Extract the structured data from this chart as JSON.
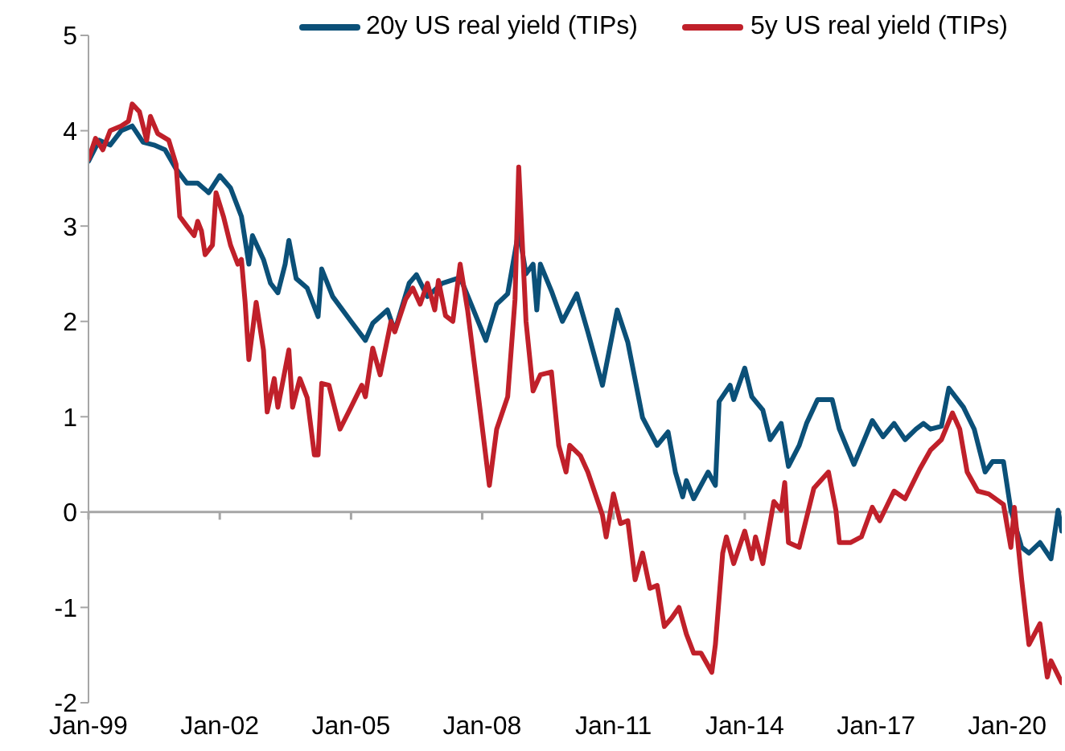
{
  "chart_data": {
    "type": "line",
    "xlim": [
      "1999-01",
      "2021-04"
    ],
    "ylim": [
      -2,
      5
    ],
    "yticks": [
      -2,
      -1,
      0,
      1,
      2,
      3,
      4,
      5
    ],
    "xticks": [
      {
        "value": "1999-01",
        "label": "Jan-99"
      },
      {
        "value": "2002-01",
        "label": "Jan-02"
      },
      {
        "value": "2005-01",
        "label": "Jan-05"
      },
      {
        "value": "2008-01",
        "label": "Jan-08"
      },
      {
        "value": "2011-01",
        "label": "Jan-11"
      },
      {
        "value": "2014-01",
        "label": "Jan-14"
      },
      {
        "value": "2017-01",
        "label": "Jan-17"
      },
      {
        "value": "2020-01",
        "label": "Jan-20"
      }
    ],
    "grid": false,
    "legend": "top",
    "marker": "none",
    "line_style": "solid",
    "ref_lines": [
      {
        "axis": "y",
        "value": 0,
        "color": "#a6a6a6"
      }
    ],
    "series": [
      {
        "name": "20y US real yield (TIPs)",
        "color": "#0b5078",
        "x": [
          "1999-01",
          "1999-04",
          "1999-07",
          "1999-10",
          "2000-01",
          "2000-04",
          "2000-07",
          "2000-10",
          "2001-01",
          "2001-04",
          "2001-07",
          "2001-10",
          "2002-01",
          "2002-04",
          "2002-07",
          "2002-09",
          "2002-10",
          "2003-01",
          "2003-03",
          "2003-05",
          "2003-07",
          "2003-08",
          "2003-10",
          "2004-01",
          "2004-04",
          "2004-05",
          "2004-08",
          "2005-01",
          "2005-05",
          "2005-07",
          "2005-11",
          "2006-01",
          "2006-05",
          "2006-07",
          "2006-10",
          "2007-02",
          "2007-07",
          "2007-10",
          "2008-02",
          "2008-05",
          "2008-08",
          "2008-11",
          "2009-01",
          "2009-03",
          "2009-04",
          "2009-05",
          "2009-08",
          "2009-11",
          "2010-03",
          "2010-06",
          "2010-10",
          "2011-02",
          "2011-05",
          "2011-09",
          "2012-01",
          "2012-04",
          "2012-06",
          "2012-08",
          "2012-09",
          "2012-11",
          "2013-03",
          "2013-05",
          "2013-06",
          "2013-09",
          "2013-10",
          "2014-01",
          "2014-03",
          "2014-06",
          "2014-08",
          "2014-11",
          "2015-01",
          "2015-04",
          "2015-06",
          "2015-09",
          "2016-01",
          "2016-03",
          "2016-07",
          "2016-12",
          "2017-03",
          "2017-06",
          "2017-09",
          "2017-12",
          "2018-02",
          "2018-04",
          "2018-07",
          "2018-09",
          "2019-01",
          "2019-04",
          "2019-07",
          "2019-09",
          "2019-12",
          "2020-02",
          "2020-05",
          "2020-07",
          "2020-10",
          "2021-01",
          "2021-03",
          "2021-04"
        ],
        "values": [
          3.68,
          3.9,
          3.85,
          4.0,
          4.05,
          3.88,
          3.85,
          3.8,
          3.6,
          3.45,
          3.45,
          3.35,
          3.53,
          3.4,
          3.1,
          2.6,
          2.9,
          2.65,
          2.4,
          2.3,
          2.6,
          2.85,
          2.45,
          2.35,
          2.05,
          2.55,
          2.26,
          2.0,
          1.8,
          1.98,
          2.12,
          1.9,
          2.4,
          2.49,
          2.26,
          2.4,
          2.46,
          2.18,
          1.8,
          2.18,
          2.29,
          2.95,
          2.5,
          2.6,
          2.12,
          2.6,
          2.32,
          2.0,
          2.29,
          1.89,
          1.33,
          2.12,
          1.78,
          0.99,
          0.7,
          0.84,
          0.42,
          0.16,
          0.33,
          0.14,
          0.42,
          0.28,
          1.16,
          1.33,
          1.18,
          1.51,
          1.21,
          1.07,
          0.76,
          0.93,
          0.48,
          0.7,
          0.93,
          1.18,
          1.18,
          0.87,
          0.5,
          0.96,
          0.79,
          0.93,
          0.76,
          0.87,
          0.93,
          0.87,
          0.9,
          1.3,
          1.1,
          0.87,
          0.42,
          0.53,
          0.53,
          0.02,
          -0.37,
          -0.43,
          -0.32,
          -0.49,
          0.02,
          -0.2
        ]
      },
      {
        "name": "5y US real yield (TIPs)",
        "color": "#c0202a",
        "x": [
          "1999-01",
          "1999-03",
          "1999-05",
          "1999-07",
          "1999-10",
          "1999-12",
          "2000-01",
          "2000-03",
          "2000-05",
          "2000-06",
          "2000-08",
          "2000-11",
          "2001-01",
          "2001-02",
          "2001-04",
          "2001-06",
          "2001-07",
          "2001-08",
          "2001-09",
          "2001-11",
          "2001-12",
          "2002-02",
          "2002-04",
          "2002-06",
          "2002-07",
          "2002-08",
          "2002-09",
          "2002-11",
          "2003-01",
          "2003-02",
          "2003-04",
          "2003-05",
          "2003-06",
          "2003-08",
          "2003-09",
          "2003-11",
          "2004-01",
          "2004-03",
          "2004-04",
          "2004-05",
          "2004-07",
          "2004-10",
          "2005-01",
          "2005-04",
          "2005-05",
          "2005-07",
          "2005-09",
          "2005-12",
          "2006-01",
          "2006-04",
          "2006-06",
          "2006-08",
          "2006-10",
          "2006-12",
          "2007-01",
          "2007-03",
          "2007-05",
          "2007-07",
          "2007-09",
          "2007-12",
          "2008-03",
          "2008-05",
          "2008-08",
          "2008-10",
          "2008-11",
          "2009-01",
          "2009-03",
          "2009-05",
          "2009-08",
          "2009-10",
          "2009-12",
          "2010-01",
          "2010-04",
          "2010-06",
          "2010-10",
          "2010-11",
          "2011-01",
          "2011-03",
          "2011-05",
          "2011-07",
          "2011-09",
          "2011-11",
          "2012-01",
          "2012-03",
          "2012-05",
          "2012-07",
          "2012-09",
          "2012-11",
          "2013-01",
          "2013-04",
          "2013-05",
          "2013-07",
          "2013-08",
          "2013-10",
          "2014-01",
          "2014-03",
          "2014-04",
          "2014-06",
          "2014-09",
          "2014-11",
          "2014-12",
          "2015-01",
          "2015-04",
          "2015-08",
          "2015-12",
          "2016-02",
          "2016-03",
          "2016-06",
          "2016-09",
          "2016-12",
          "2017-02",
          "2017-06",
          "2017-09",
          "2018-01",
          "2018-04",
          "2018-07",
          "2018-10",
          "2018-12",
          "2019-02",
          "2019-05",
          "2019-08",
          "2019-12",
          "2020-02",
          "2020-03",
          "2020-05",
          "2020-07",
          "2020-10",
          "2020-12",
          "2021-01",
          "2021-04"
        ],
        "values": [
          3.7,
          3.92,
          3.8,
          4.0,
          4.05,
          4.1,
          4.28,
          4.2,
          3.9,
          4.15,
          3.97,
          3.9,
          3.65,
          3.1,
          3.0,
          2.9,
          3.05,
          2.95,
          2.7,
          2.8,
          3.35,
          3.1,
          2.8,
          2.6,
          2.65,
          2.2,
          1.6,
          2.2,
          1.7,
          1.05,
          1.4,
          1.1,
          1.3,
          1.7,
          1.1,
          1.4,
          1.2,
          0.6,
          0.6,
          1.35,
          1.33,
          0.87,
          1.1,
          1.33,
          1.21,
          1.72,
          1.44,
          2.0,
          1.89,
          2.23,
          2.35,
          2.18,
          2.4,
          2.12,
          2.43,
          2.06,
          2.0,
          2.6,
          2.12,
          1.21,
          0.28,
          0.87,
          1.21,
          2.23,
          3.62,
          2.0,
          1.27,
          1.44,
          1.47,
          0.7,
          0.42,
          0.7,
          0.59,
          0.42,
          -0.03,
          -0.26,
          0.19,
          -0.12,
          -0.09,
          -0.71,
          -0.43,
          -0.8,
          -0.77,
          -1.2,
          -1.11,
          -1.0,
          -1.28,
          -1.48,
          -1.48,
          -1.68,
          -1.39,
          -0.43,
          -0.26,
          -0.54,
          -0.2,
          -0.49,
          -0.26,
          -0.54,
          0.11,
          0.02,
          0.31,
          -0.32,
          -0.37,
          0.25,
          0.42,
          0.02,
          -0.32,
          -0.32,
          -0.26,
          0.05,
          -0.09,
          0.22,
          0.14,
          0.45,
          0.65,
          0.76,
          1.04,
          0.87,
          0.42,
          0.22,
          0.19,
          0.08,
          -0.37,
          0.05,
          -0.71,
          -1.39,
          -1.17,
          -1.73,
          -1.56,
          -1.79
        ]
      }
    ]
  }
}
